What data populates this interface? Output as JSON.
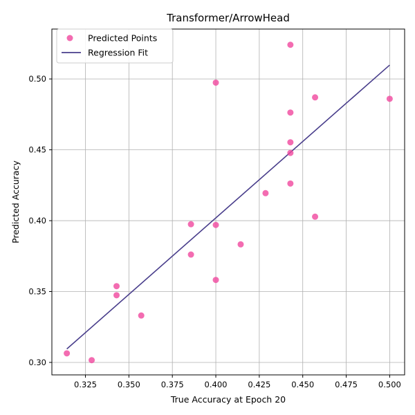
{
  "chart_data": {
    "type": "scatter",
    "title": "Transformer/ArrowHead",
    "xlabel": "True Accuracy at Epoch 20",
    "ylabel": "Predicted Accuracy",
    "xlim": [
      0.3057,
      0.5086
    ],
    "ylim": [
      0.2912,
      0.5352
    ],
    "xticks": [
      0.325,
      0.35,
      0.375,
      0.4,
      0.425,
      0.45,
      0.475,
      0.5
    ],
    "xtick_labels": [
      "0.325",
      "0.350",
      "0.375",
      "0.400",
      "0.425",
      "0.450",
      "0.475",
      "0.500"
    ],
    "yticks": [
      0.3,
      0.35,
      0.4,
      0.45,
      0.5
    ],
    "ytick_labels": [
      "0.30",
      "0.35",
      "0.40",
      "0.45",
      "0.50"
    ],
    "grid": true,
    "legend_position": "top-left",
    "series": [
      {
        "name": "Predicted Points",
        "kind": "scatter",
        "color": "#f0479e",
        "points": [
          {
            "x": 0.3143,
            "y": 0.3064
          },
          {
            "x": 0.3286,
            "y": 0.3016
          },
          {
            "x": 0.3429,
            "y": 0.3538
          },
          {
            "x": 0.3429,
            "y": 0.3474
          },
          {
            "x": 0.3571,
            "y": 0.3331
          },
          {
            "x": 0.3857,
            "y": 0.3975
          },
          {
            "x": 0.3857,
            "y": 0.3761
          },
          {
            "x": 0.4,
            "y": 0.4974
          },
          {
            "x": 0.4,
            "y": 0.397
          },
          {
            "x": 0.4,
            "y": 0.3582
          },
          {
            "x": 0.4143,
            "y": 0.3833
          },
          {
            "x": 0.4286,
            "y": 0.4194
          },
          {
            "x": 0.4429,
            "y": 0.5241
          },
          {
            "x": 0.4429,
            "y": 0.4763
          },
          {
            "x": 0.4429,
            "y": 0.4553
          },
          {
            "x": 0.4429,
            "y": 0.4478
          },
          {
            "x": 0.4429,
            "y": 0.4262
          },
          {
            "x": 0.4571,
            "y": 0.487
          },
          {
            "x": 0.4571,
            "y": 0.4028
          },
          {
            "x": 0.5,
            "y": 0.486
          }
        ]
      },
      {
        "name": "Regression Fit",
        "kind": "line",
        "color": "#483d8b",
        "points": [
          {
            "x": 0.3143,
            "y": 0.3095
          },
          {
            "x": 0.5,
            "y": 0.5098
          }
        ]
      }
    ]
  }
}
